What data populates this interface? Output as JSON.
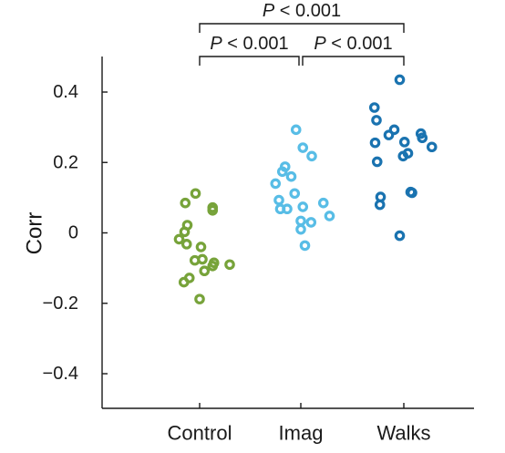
{
  "chart_data": {
    "type": "scatter",
    "ylabel": "Corr",
    "ylim": [
      -0.5,
      0.5
    ],
    "yticks": [
      {
        "value": 0.4,
        "label": "0.4"
      },
      {
        "value": 0.2,
        "label": "0.2"
      },
      {
        "value": 0,
        "label": "0"
      },
      {
        "value": -0.2,
        "label": "−0.2"
      },
      {
        "value": -0.4,
        "label": "−0.4"
      }
    ],
    "categories": [
      "Control",
      "Imag",
      "Walks"
    ],
    "grid": false,
    "series": [
      {
        "category": "Control",
        "color": "#77a33a",
        "points": [
          {
            "offset": -0.21,
            "y": 0.085
          },
          {
            "offset": -0.06,
            "y": 0.112
          },
          {
            "offset": 0.19,
            "y": 0.072
          },
          {
            "offset": 0.19,
            "y": 0.064
          },
          {
            "offset": -0.18,
            "y": 0.022
          },
          {
            "offset": -0.22,
            "y": 0.003
          },
          {
            "offset": -0.3,
            "y": -0.018
          },
          {
            "offset": -0.19,
            "y": -0.032
          },
          {
            "offset": 0.02,
            "y": -0.04
          },
          {
            "offset": -0.07,
            "y": -0.078
          },
          {
            "offset": 0.04,
            "y": -0.075
          },
          {
            "offset": 0.21,
            "y": -0.085
          },
          {
            "offset": 0.19,
            "y": -0.094
          },
          {
            "offset": 0.44,
            "y": -0.09
          },
          {
            "offset": 0.07,
            "y": -0.108
          },
          {
            "offset": -0.15,
            "y": -0.128
          },
          {
            "offset": -0.23,
            "y": -0.14
          },
          {
            "offset": 0.0,
            "y": -0.188
          }
        ]
      },
      {
        "category": "Imag",
        "color": "#58bde6",
        "points": [
          {
            "offset": -0.07,
            "y": 0.293
          },
          {
            "offset": 0.03,
            "y": 0.242
          },
          {
            "offset": 0.16,
            "y": 0.218
          },
          {
            "offset": -0.23,
            "y": 0.188
          },
          {
            "offset": -0.27,
            "y": 0.174
          },
          {
            "offset": -0.14,
            "y": 0.16
          },
          {
            "offset": -0.37,
            "y": 0.14
          },
          {
            "offset": -0.09,
            "y": 0.112
          },
          {
            "offset": -0.32,
            "y": 0.093
          },
          {
            "offset": 0.33,
            "y": 0.085
          },
          {
            "offset": 0.03,
            "y": 0.074
          },
          {
            "offset": -0.3,
            "y": 0.068
          },
          {
            "offset": -0.2,
            "y": 0.068
          },
          {
            "offset": 0.42,
            "y": 0.048
          },
          {
            "offset": 0.0,
            "y": 0.034
          },
          {
            "offset": 0.15,
            "y": 0.03
          },
          {
            "offset": 0.0,
            "y": 0.01
          },
          {
            "offset": 0.06,
            "y": -0.036
          }
        ]
      },
      {
        "category": "Walks",
        "color": "#1a73b0",
        "points": [
          {
            "offset": -0.06,
            "y": 0.435
          },
          {
            "offset": -0.43,
            "y": 0.356
          },
          {
            "offset": -0.4,
            "y": 0.32
          },
          {
            "offset": -0.14,
            "y": 0.293
          },
          {
            "offset": 0.25,
            "y": 0.282
          },
          {
            "offset": -0.22,
            "y": 0.278
          },
          {
            "offset": 0.27,
            "y": 0.27
          },
          {
            "offset": 0.01,
            "y": 0.258
          },
          {
            "offset": -0.42,
            "y": 0.256
          },
          {
            "offset": 0.41,
            "y": 0.244
          },
          {
            "offset": 0.06,
            "y": 0.226
          },
          {
            "offset": -0.01,
            "y": 0.218
          },
          {
            "offset": -0.39,
            "y": 0.202
          },
          {
            "offset": 0.1,
            "y": 0.116
          },
          {
            "offset": 0.12,
            "y": 0.114
          },
          {
            "offset": -0.34,
            "y": 0.102
          },
          {
            "offset": -0.35,
            "y": 0.08
          },
          {
            "offset": -0.06,
            "y": -0.008
          }
        ]
      }
    ],
    "significance": [
      {
        "from": "Control",
        "to": "Walks",
        "italic": "P",
        "text": " < 0.001",
        "level": 2
      },
      {
        "from": "Control",
        "to": "Imag",
        "italic": "P",
        "text": " < 0.001",
        "level": 1
      },
      {
        "from": "Imag",
        "to": "Walks",
        "italic": "P",
        "text": " < 0.001",
        "level": 1
      }
    ]
  }
}
